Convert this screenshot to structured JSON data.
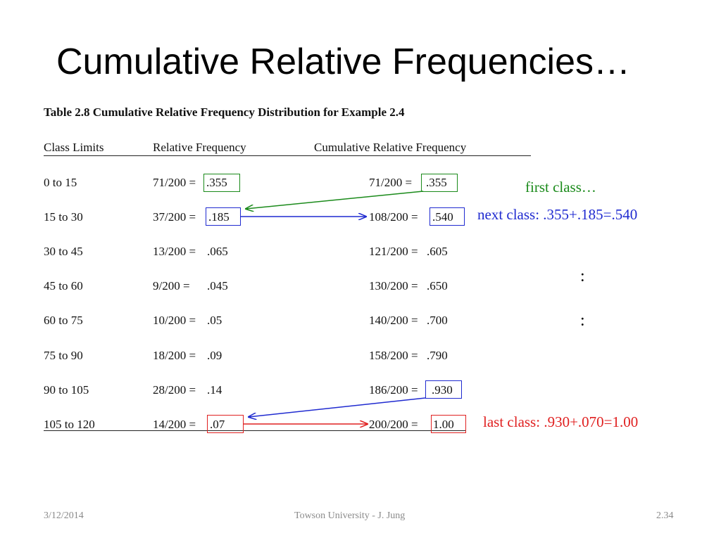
{
  "title": "Cumulative Relative Frequencies…",
  "table": {
    "caption": "Table 2.8 Cumulative Relative Frequency Distribution for Example 2.4",
    "headers": [
      "Class Limits",
      "Relative Frequency",
      "Cumulative Relative Frequency"
    ],
    "rows": [
      {
        "class": "0 to 15",
        "rel_prefix": "71/200 =",
        "rel_value": ".355",
        "cum_prefix": "71/200 =",
        "cum_value": ".355"
      },
      {
        "class": "15 to 30",
        "rel_prefix": "37/200 =",
        "rel_value": ".185",
        "cum_prefix": "108/200 =",
        "cum_value": ".540"
      },
      {
        "class": "30 to 45",
        "rel_prefix": "13/200 =",
        "rel_value": ".065",
        "cum_prefix": "121/200 =",
        "cum_value": ".605"
      },
      {
        "class": "45 to 60",
        "rel_prefix": "9/200 =",
        "rel_value": ".045",
        "cum_prefix": "130/200 =",
        "cum_value": ".650"
      },
      {
        "class": "60 to 75",
        "rel_prefix": "10/200 =",
        "rel_value": ".05",
        "cum_prefix": "140/200 =",
        "cum_value": ".700"
      },
      {
        "class": "75 to 90",
        "rel_prefix": "18/200 =",
        "rel_value": ".09",
        "cum_prefix": "158/200 =",
        "cum_value": ".790"
      },
      {
        "class": "90 to 105",
        "rel_prefix": "28/200 =",
        "rel_value": ".14",
        "cum_prefix": "186/200 =",
        "cum_value": ".930"
      },
      {
        "class": "105 to 120",
        "rel_prefix": "14/200 =",
        "rel_value": ".07",
        "cum_prefix": "200/200 =",
        "cum_value": "1.00"
      }
    ]
  },
  "annotations": {
    "first_class": "first class…",
    "next_class": "next class: .355+.185=.540",
    "last_class": "last class: .930+.070=1.00",
    "ellipsis_1": ":",
    "ellipsis_2": ":"
  },
  "colors": {
    "green": "#1a8a1a",
    "blue": "#1f2ad0",
    "red": "#e02020"
  },
  "footer": {
    "date": "3/12/2014",
    "author": "Towson University - J. Jung",
    "slide_number": "2.34"
  }
}
